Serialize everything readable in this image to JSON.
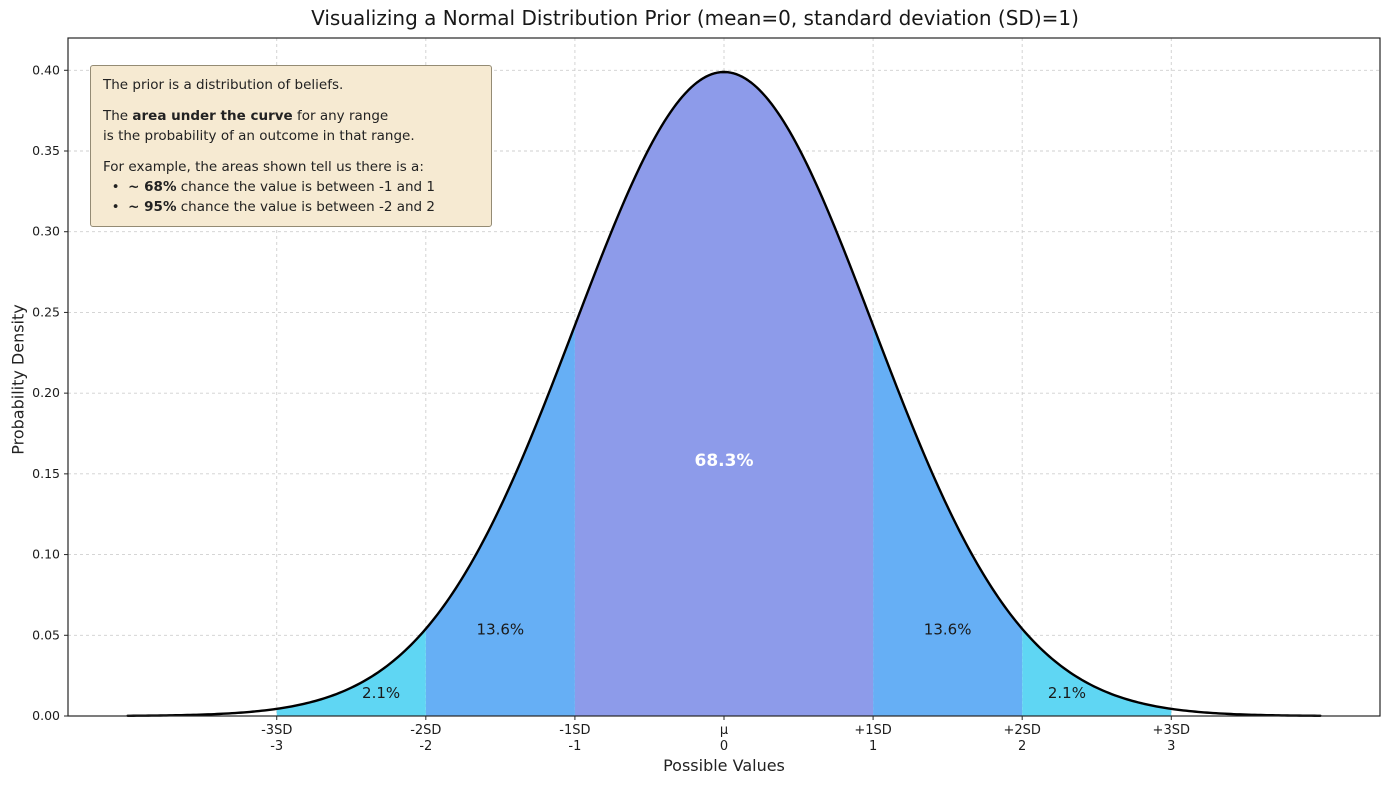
{
  "title": "Visualizing a Normal Distribution Prior (mean=0, standard deviation (SD)=1)",
  "chart_data": {
    "type": "area",
    "title": "Visualizing a Normal Distribution Prior (mean=0, standard deviation (SD)=1)",
    "xlabel": "Possible Values",
    "ylabel": "Probability Density",
    "xlim": [
      -4.4,
      4.4
    ],
    "ylim": [
      0,
      0.42
    ],
    "curve_domain": [
      -4,
      4
    ],
    "grid": true,
    "legend": "none",
    "distribution": {
      "name": "normal",
      "mean": 0,
      "sd": 1,
      "peak_density": 0.3989
    },
    "curve_color": "#000000",
    "grid_color": "#cfcfcf",
    "frame_color": "#262626",
    "y_ticks": [
      {
        "value": 0.0,
        "label": "0.00"
      },
      {
        "value": 0.05,
        "label": "0.05"
      },
      {
        "value": 0.1,
        "label": "0.10"
      },
      {
        "value": 0.15,
        "label": "0.15"
      },
      {
        "value": 0.2,
        "label": "0.20"
      },
      {
        "value": 0.25,
        "label": "0.25"
      },
      {
        "value": 0.3,
        "label": "0.30"
      },
      {
        "value": 0.35,
        "label": "0.35"
      },
      {
        "value": 0.4,
        "label": "0.40"
      }
    ],
    "x_ticks": [
      {
        "value": -3,
        "sd_label": "-3SD",
        "num_label": "-3"
      },
      {
        "value": -2,
        "sd_label": "-2SD",
        "num_label": "-2"
      },
      {
        "value": -1,
        "sd_label": "-1SD",
        "num_label": "-1"
      },
      {
        "value": 0,
        "sd_label": "μ",
        "num_label": "0"
      },
      {
        "value": 1,
        "sd_label": "+1SD",
        "num_label": "1"
      },
      {
        "value": 2,
        "sd_label": "+2SD",
        "num_label": "2"
      },
      {
        "value": 3,
        "sd_label": "+3SD",
        "num_label": "3"
      }
    ],
    "regions": [
      {
        "from": -1,
        "to": 1,
        "color": "#8d9bea",
        "label": "68.3%",
        "label_x": 0,
        "label_y": 0.155,
        "label_color": "#ffffff",
        "label_bold": true,
        "label_size": 17
      },
      {
        "from": -2,
        "to": -1,
        "color": "#66aff5",
        "label": "13.6%",
        "label_x": -1.5,
        "label_y": 0.0505,
        "label_color": "#1a1a1a",
        "label_bold": false,
        "label_size": 15
      },
      {
        "from": 1,
        "to": 2,
        "color": "#66aff5",
        "label": "13.6%",
        "label_x": 1.5,
        "label_y": 0.0505,
        "label_color": "#1a1a1a",
        "label_bold": false,
        "label_size": 15
      },
      {
        "from": -3,
        "to": -2,
        "color": "#5fd6f3",
        "label": "2.1%",
        "label_x": -2.3,
        "label_y": 0.011,
        "label_color": "#1a1a1a",
        "label_bold": false,
        "label_size": 15
      },
      {
        "from": 2,
        "to": 3,
        "color": "#5fd6f3",
        "label": "2.1%",
        "label_x": 2.3,
        "label_y": 0.011,
        "label_color": "#1a1a1a",
        "label_bold": false,
        "label_size": 15
      }
    ],
    "annotation": {
      "background": "#f6ead2",
      "border": "#948b74",
      "lines": [
        [
          {
            "t": "The prior is a distribution of beliefs.",
            "b": false
          }
        ],
        [],
        [
          {
            "t": "The ",
            "b": false
          },
          {
            "t": "area under the curve",
            "b": true
          },
          {
            "t": " for any range",
            "b": false
          }
        ],
        [
          {
            "t": "is the probability of an outcome in that range.",
            "b": false
          }
        ],
        [],
        [
          {
            "t": "For example, the areas shown tell us there is a:",
            "b": false
          }
        ],
        [
          {
            "t": "  •  ",
            "b": false
          },
          {
            "t": "~ 68%",
            "b": true
          },
          {
            "t": " chance the value is between -1 and 1",
            "b": false
          }
        ],
        [
          {
            "t": "  •  ",
            "b": false
          },
          {
            "t": "~ 95%",
            "b": true
          },
          {
            "t": " chance the value is between -2 and 2",
            "b": false
          }
        ]
      ]
    }
  }
}
